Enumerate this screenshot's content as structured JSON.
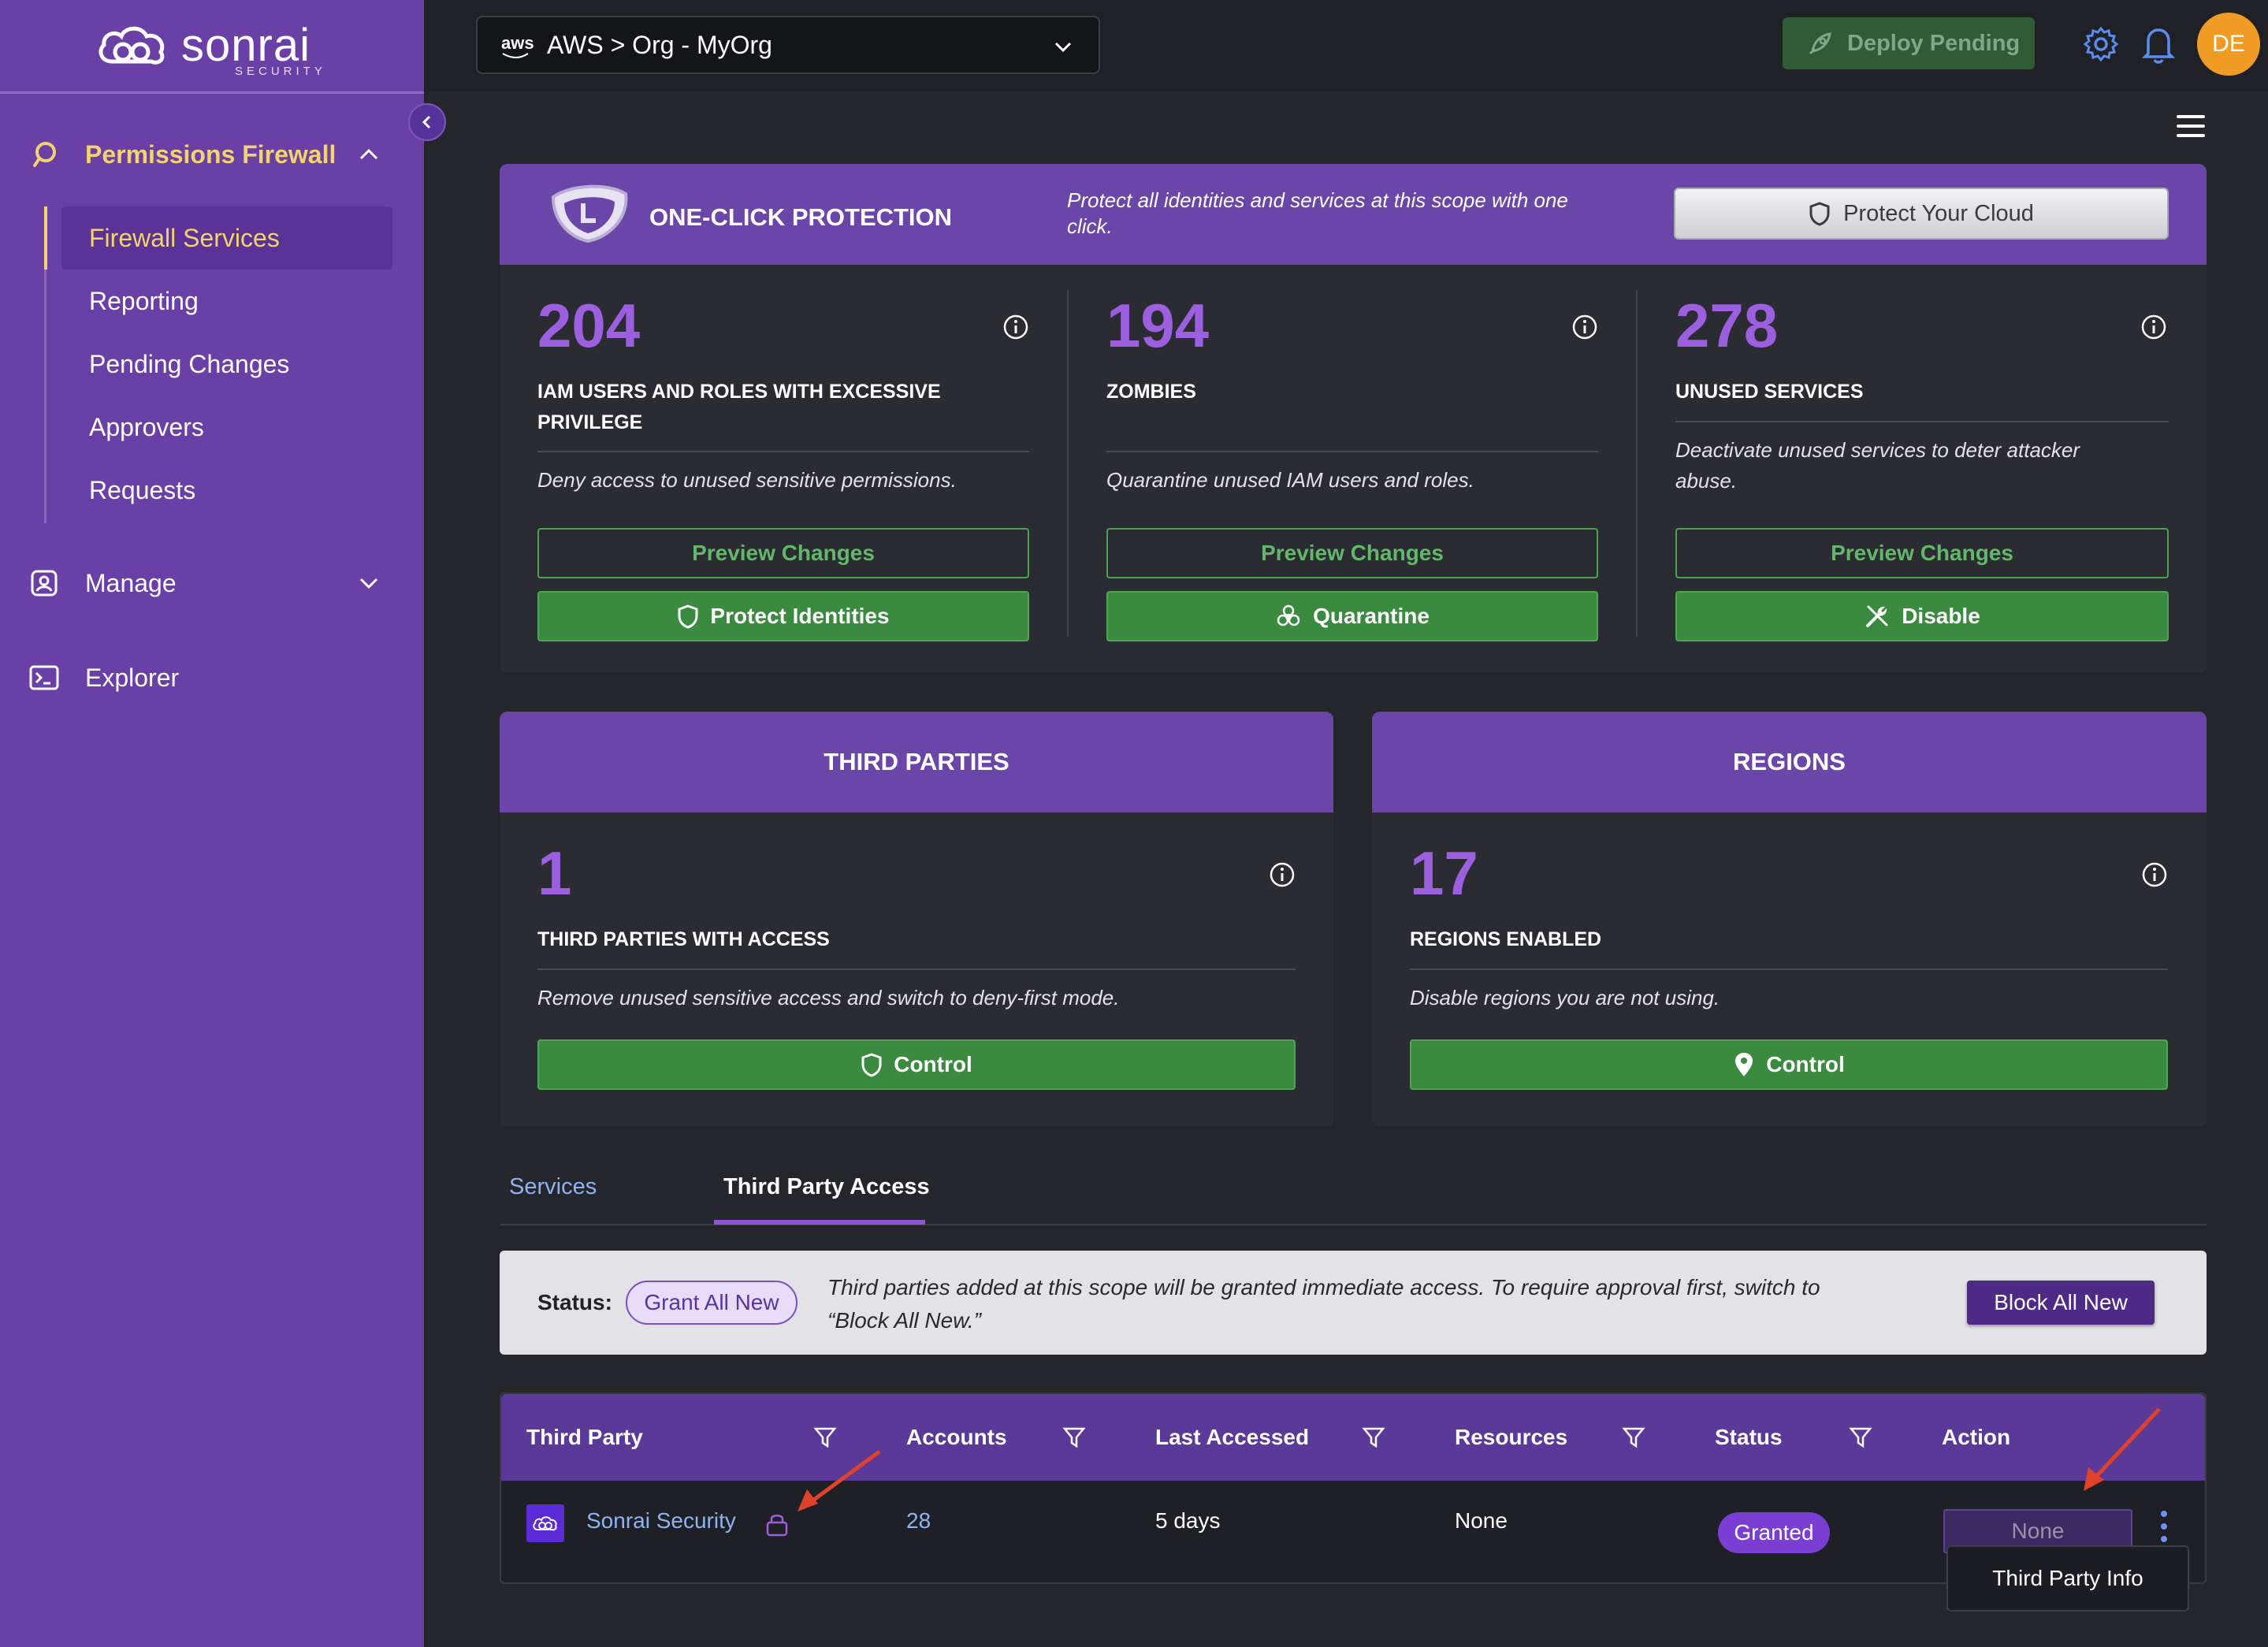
{
  "brand": {
    "name": "sonrai",
    "sub": "SECURITY"
  },
  "sidebar": {
    "sections": [
      {
        "label": "Permissions Firewall",
        "icon": "bubble-icon",
        "expanded": true
      },
      {
        "label": "Manage",
        "icon": "user-card-icon",
        "expanded": false
      },
      {
        "label": "Explorer",
        "icon": "terminal-icon"
      }
    ],
    "subitems": [
      {
        "label": "Firewall Services",
        "active": true
      },
      {
        "label": "Reporting"
      },
      {
        "label": "Pending Changes"
      },
      {
        "label": "Approvers"
      },
      {
        "label": "Requests"
      }
    ]
  },
  "topbar": {
    "scope_provider": "aws",
    "scope": "AWS > Org - MyOrg",
    "deploy_label": "Deploy Pending",
    "avatar_initials": "DE"
  },
  "one_click": {
    "title": "ONE-CLICK PROTECTION",
    "description": "Protect all identities and services at this scope with one click.",
    "button": "Protect Your Cloud"
  },
  "metrics": [
    {
      "value": "204",
      "caption_1": "IAM USERS AND ROLES WITH EXCESSIVE",
      "caption_2": "PRIVILEGE",
      "desc_1": "Deny access to unused sensitive permissions.",
      "desc_2": "",
      "preview": "Preview Changes",
      "action": "Protect Identities"
    },
    {
      "value": "194",
      "caption_1": "ZOMBIES",
      "caption_2": "",
      "desc_1": "Quarantine unused IAM users and roles.",
      "desc_2": "",
      "preview": "Preview Changes",
      "action": "Quarantine"
    },
    {
      "value": "278",
      "caption_1": "UNUSED SERVICES",
      "caption_2": "",
      "desc_1": "Deactivate unused services to deter attacker",
      "desc_2": "abuse.",
      "preview": "Preview Changes",
      "action": "Disable"
    }
  ],
  "third_parties": {
    "title": "THIRD PARTIES",
    "value": "1",
    "caption": "THIRD PARTIES WITH ACCESS",
    "desc": "Remove unused sensitive access and switch to deny-first mode.",
    "action": "Control"
  },
  "regions": {
    "title": "REGIONS",
    "value": "17",
    "caption": "REGIONS ENABLED",
    "desc": "Disable regions you are not using.",
    "action": "Control"
  },
  "tabs": [
    {
      "label": "Services",
      "active": false
    },
    {
      "label": "Third Party Access",
      "active": true
    }
  ],
  "status_banner": {
    "label": "Status:",
    "pill": "Grant All New",
    "message_1": "Third parties added at this scope will be granted immediate access. To require approval first, switch to",
    "message_2": "“Block All New.”",
    "button": "Block All New"
  },
  "table": {
    "columns": [
      "Third Party",
      "Accounts",
      "Last Accessed",
      "Resources",
      "Status",
      "Action"
    ],
    "rows": [
      {
        "third_party": "Sonrai Security",
        "accounts": "28",
        "last_accessed": "5 days",
        "resources": "None",
        "status": "Granted",
        "action": "None"
      }
    ],
    "menu_item": "Third Party Info"
  },
  "colors": {
    "sidebar": "#6a3fa6",
    "accent_purple": "#9b5fe0",
    "green": "#3a8a3f",
    "active_yellow": "#f3d36b",
    "annotation_red": "#e0412a"
  }
}
